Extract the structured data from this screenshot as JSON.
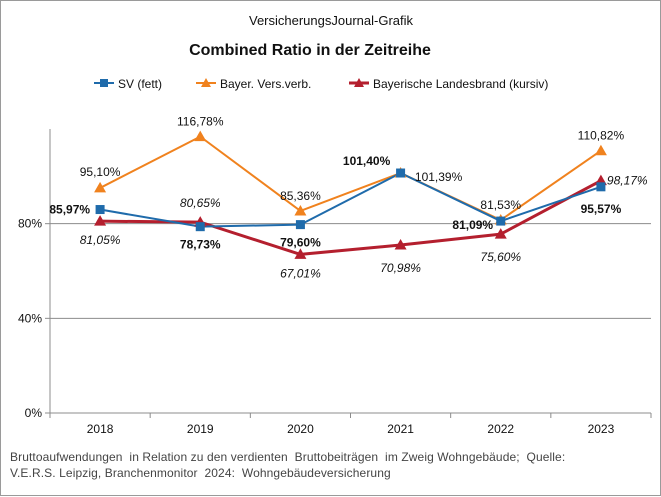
{
  "chart_data": {
    "type": "line",
    "super_title": "VersicherungsJournal-Grafik",
    "title": "Combined  Ratio  in der Zeitreihe",
    "categories": [
      "2018",
      "2019",
      "2020",
      "2021",
      "2022",
      "2023"
    ],
    "y_ticks": [
      "0%",
      "40%",
      "80%"
    ],
    "ylim": [
      0,
      120
    ],
    "xlabel": "",
    "ylabel": "",
    "legend_position": "top",
    "series": [
      {
        "name": "SV (fett)",
        "color": "#1f6bab",
        "marker": "square",
        "values": [
          85.97,
          78.73,
          79.6,
          101.4,
          81.09,
          95.57
        ],
        "labels": [
          "85,97%",
          "78,73%",
          "79,60%",
          "101,40%",
          "81,09%",
          "95,57%"
        ]
      },
      {
        "name": "Bayer. Vers.verb.",
        "color": "#f0821e",
        "marker": "triangle",
        "values": [
          95.1,
          116.78,
          85.36,
          101.39,
          81.53,
          110.82
        ],
        "labels": [
          "95,10%",
          "116,78%",
          "85,36%",
          "101,39%",
          "81,53%",
          "110,82%"
        ]
      },
      {
        "name": "Bayerische Landesbrand (kursiv)",
        "color": "#b41f2e",
        "marker": "triangle",
        "values": [
          81.05,
          80.65,
          67.01,
          70.98,
          75.6,
          98.17
        ],
        "labels": [
          "81,05%",
          "80,65%",
          "67,01%",
          "70,98%",
          "75,60%",
          "98,17%"
        ]
      }
    ]
  },
  "source_lines": [
    "Bruttoaufwendungen  in Relation zu den verdienten  Bruttobeiträgen  im Zweig Wohngebäude;  Quelle:",
    "V.E.R.S. Leipzig, Branchenmonitor  2024:  Wohngebäudeversicherung"
  ]
}
